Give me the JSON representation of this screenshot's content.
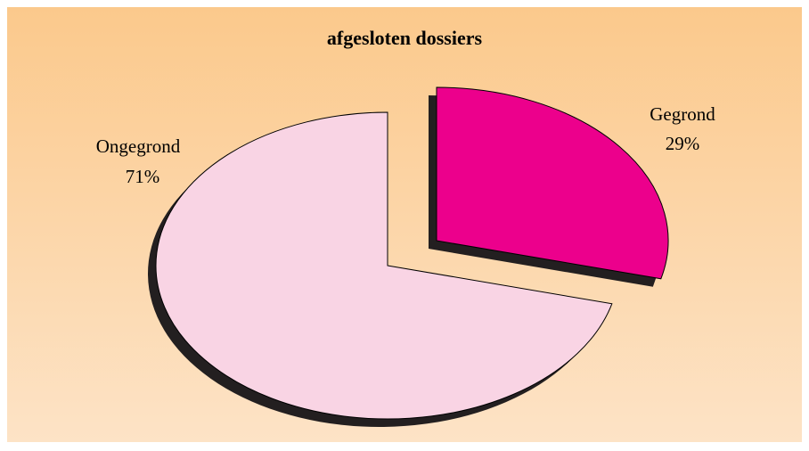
{
  "chart_data": {
    "type": "pie",
    "title": "afgesloten dossiers",
    "categories": [
      "Gegrond",
      "Ongegrond"
    ],
    "values": [
      29,
      71
    ],
    "value_labels": [
      "29%",
      "71%"
    ],
    "colors": [
      "#ec008c",
      "#f9d4e4"
    ]
  }
}
